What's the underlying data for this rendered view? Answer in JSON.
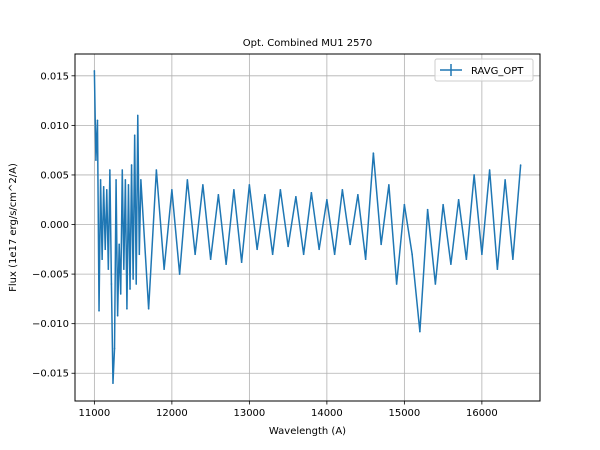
{
  "chart_data": {
    "type": "line",
    "title": "Opt. Combined MU1 2570",
    "xlabel": "Wavelength (A)",
    "ylabel": "Flux (1e17 erg/s/cm^2/A)",
    "xlim": [
      10750,
      16750
    ],
    "ylim": [
      -0.0178,
      0.0172
    ],
    "xticks": [
      11000,
      12000,
      13000,
      14000,
      15000,
      16000
    ],
    "xtick_labels": [
      "11000",
      "12000",
      "13000",
      "14000",
      "15000",
      "16000"
    ],
    "yticks": [
      -0.015,
      -0.01,
      -0.005,
      0.0,
      0.005,
      0.01,
      0.015
    ],
    "ytick_labels": [
      "−0.015",
      "−0.010",
      "−0.005",
      "0.000",
      "0.005",
      "0.010",
      "0.015"
    ],
    "grid": true,
    "legend_position": "top-right",
    "series": [
      {
        "name": "RAVG_OPT",
        "color": "#1f77b4",
        "error_bars": true,
        "x": [
          11000,
          11020,
          11040,
          11060,
          11080,
          11100,
          11120,
          11140,
          11160,
          11180,
          11200,
          11220,
          11240,
          11260,
          11280,
          11300,
          11320,
          11340,
          11360,
          11380,
          11400,
          11420,
          11440,
          11460,
          11480,
          11500,
          11520,
          11540,
          11560,
          11580,
          11600,
          11700,
          11800,
          11900,
          12000,
          12100,
          12200,
          12300,
          12400,
          12500,
          12600,
          12700,
          12800,
          12900,
          13000,
          13100,
          13200,
          13300,
          13400,
          13500,
          13600,
          13700,
          13800,
          13900,
          14000,
          14100,
          14200,
          14300,
          14400,
          14500,
          14600,
          14700,
          14800,
          14900,
          15000,
          15100,
          15200,
          15300,
          15400,
          15500,
          15600,
          15700,
          15800,
          15900,
          16000,
          16100,
          16200,
          16300,
          16400,
          16500
        ],
        "y": [
          0.0155,
          0.0065,
          0.0105,
          -0.0087,
          0.0045,
          -0.0035,
          0.0038,
          -0.0025,
          0.0035,
          -0.0045,
          0.0055,
          -0.006,
          -0.016,
          -0.0125,
          0.0045,
          -0.0092,
          -0.002,
          -0.007,
          0.0055,
          -0.0045,
          0.0045,
          -0.0085,
          0.004,
          -0.0065,
          0.006,
          -0.0055,
          0.009,
          -0.006,
          0.011,
          -0.003,
          0.0045,
          -0.0085,
          0.0055,
          -0.0045,
          0.0035,
          -0.005,
          0.0045,
          -0.003,
          0.004,
          -0.0035,
          0.003,
          -0.004,
          0.0035,
          -0.0038,
          0.004,
          -0.0025,
          0.003,
          -0.003,
          0.0035,
          -0.0022,
          0.0028,
          -0.003,
          0.0032,
          -0.0025,
          0.0025,
          -0.003,
          0.0035,
          -0.002,
          0.003,
          -0.0035,
          0.0072,
          -0.002,
          0.004,
          -0.006,
          0.002,
          -0.003,
          -0.0108,
          0.0015,
          -0.006,
          0.002,
          -0.004,
          0.0025,
          -0.0035,
          0.005,
          -0.003,
          0.0055,
          -0.0045,
          0.0045,
          -0.0035,
          0.006
        ]
      }
    ]
  }
}
